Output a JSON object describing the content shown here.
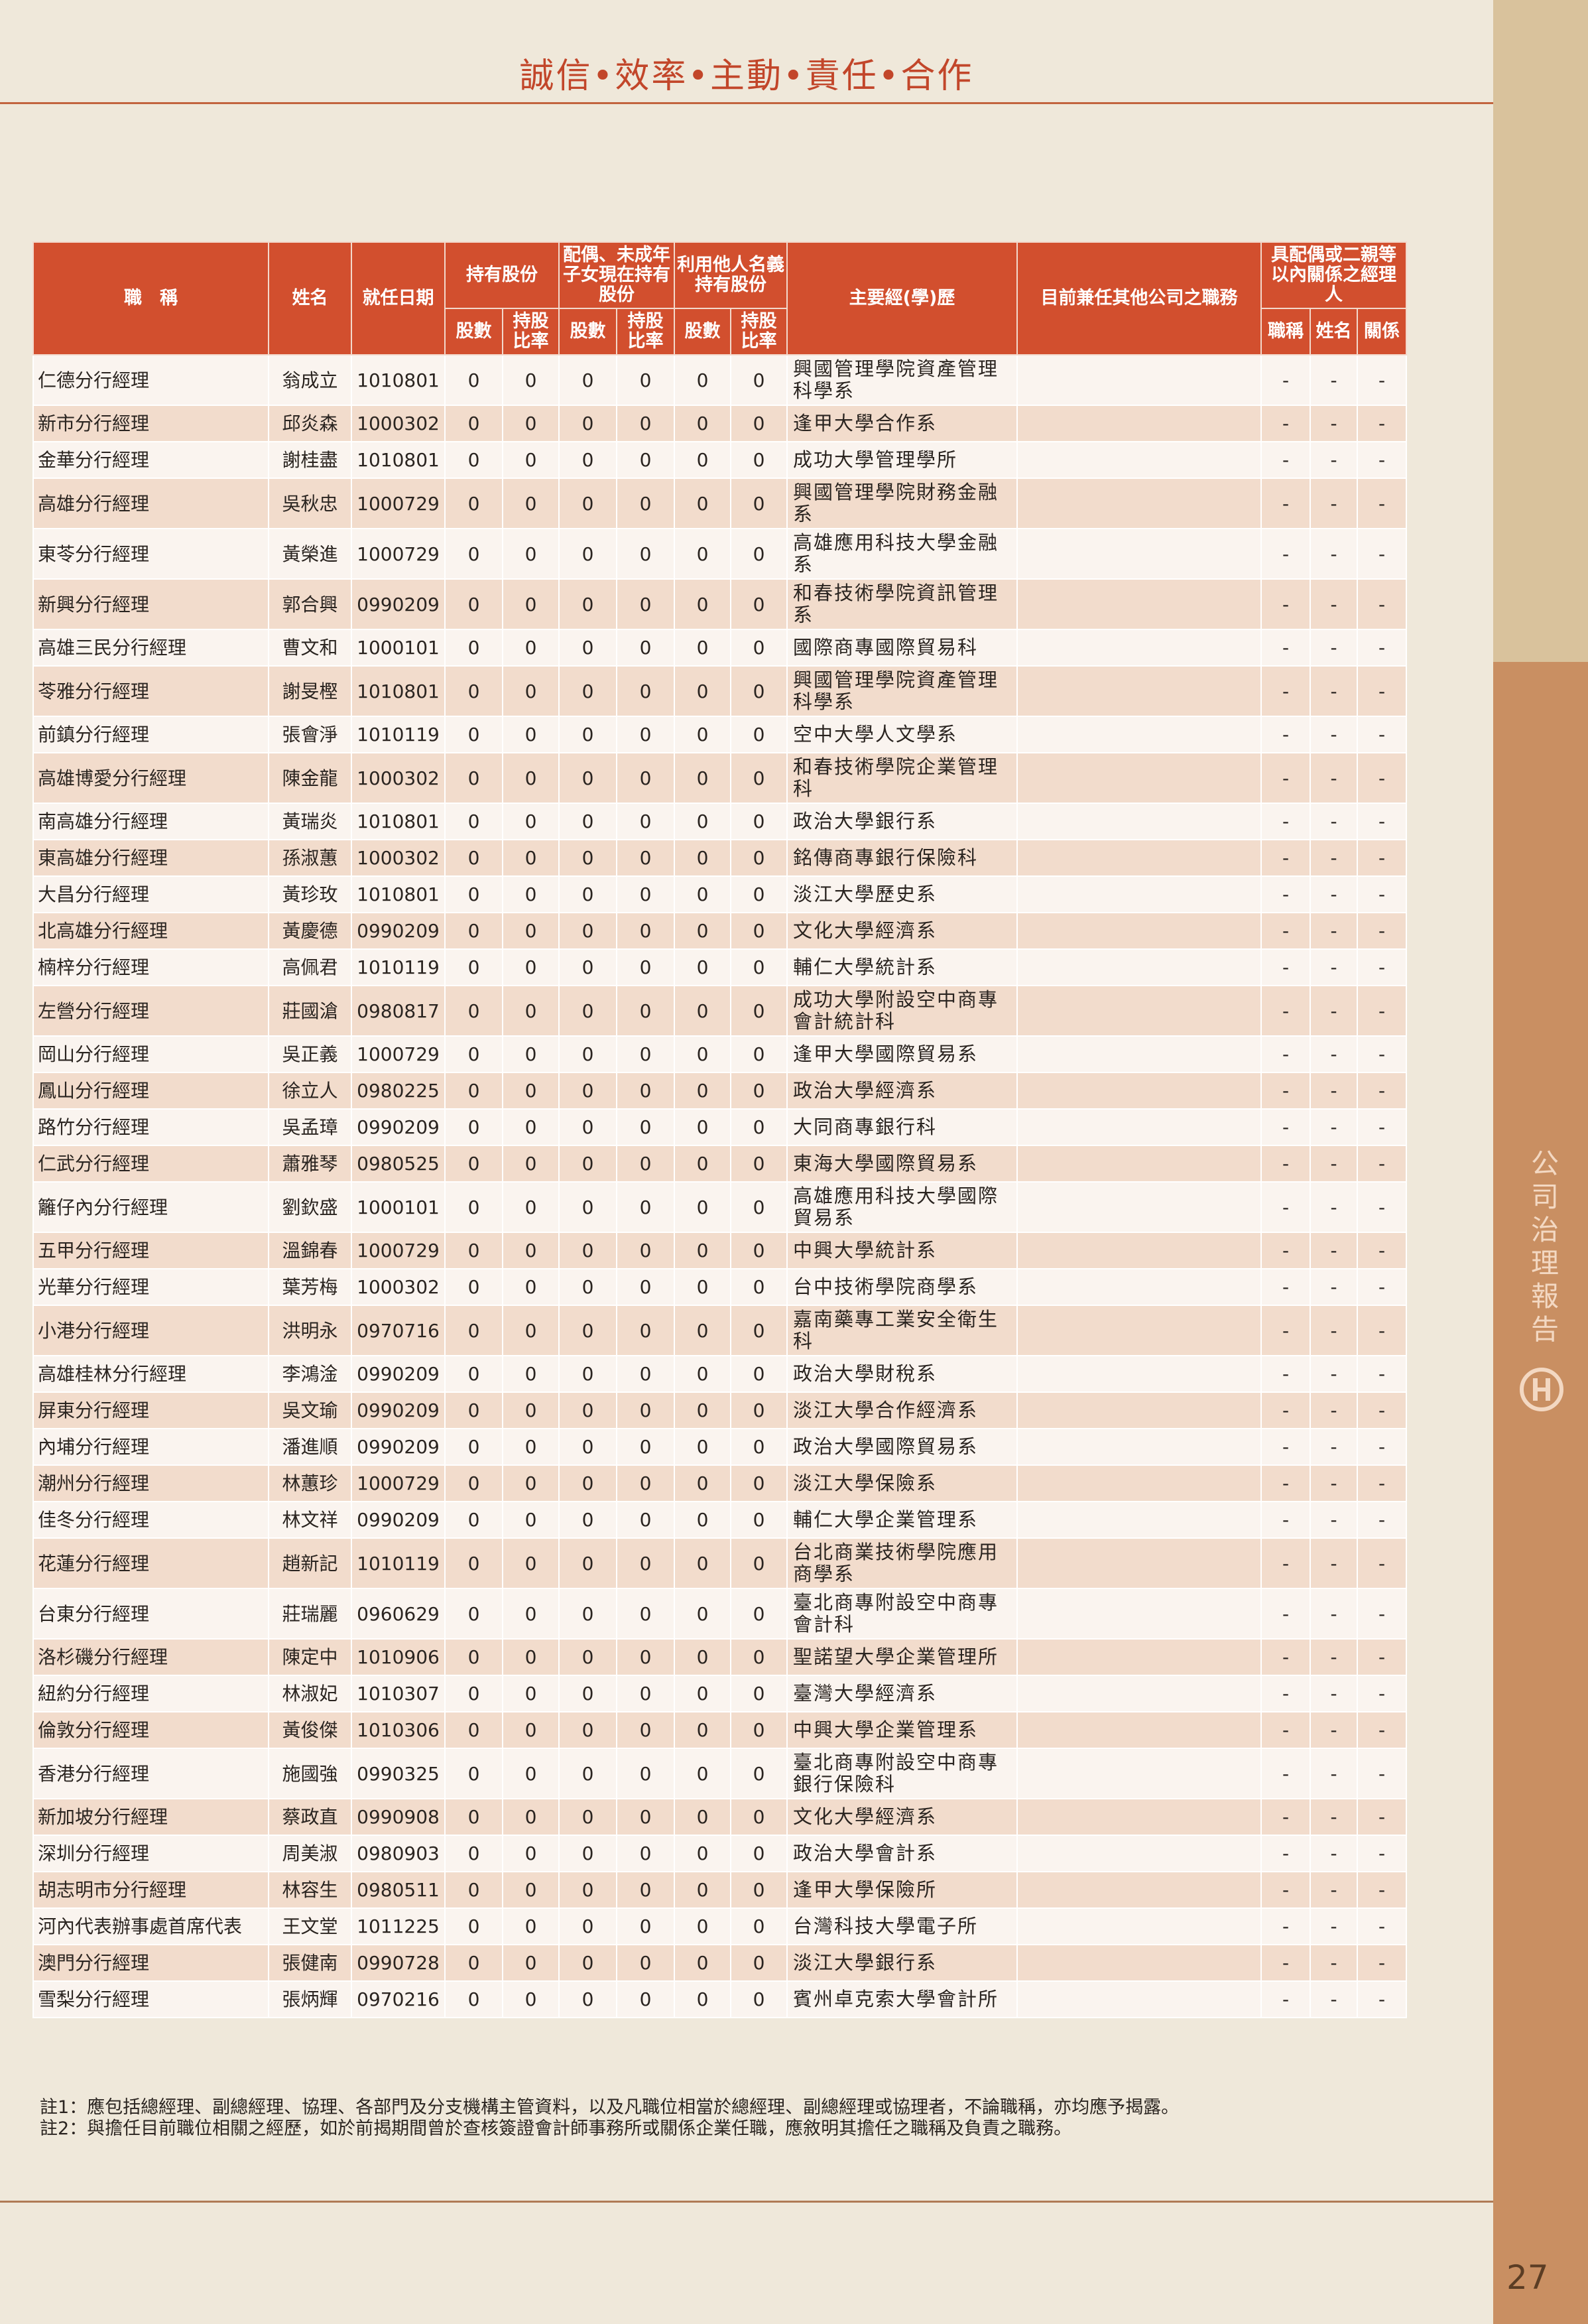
{
  "header": {
    "title": "誠信•效率•主動•責任•合作"
  },
  "table": {
    "head_top": [
      "職　稱",
      "姓名",
      "就任日期",
      "持有股份",
      "配偶、未成年子女現在持有股份",
      "利用他人名義持有股份",
      "主要經(學)歷",
      "目前兼任其他公司之職務",
      "具配偶或二親等以內關係之經理人"
    ],
    "head_sub": [
      "股數",
      "持股比率",
      "股數",
      "持股比率",
      "股數",
      "持股比率",
      "職稱",
      "姓名",
      "關係"
    ],
    "rows": [
      [
        "仁德分行經理",
        "翁成立",
        "1010801",
        0,
        0,
        0,
        0,
        0,
        0,
        "興國管理學院資產管理科學系",
        "-",
        "-",
        "-"
      ],
      [
        "新市分行經理",
        "邱炎森",
        "1000302",
        0,
        0,
        0,
        0,
        0,
        0,
        "逢甲大學合作系",
        "-",
        "-",
        "-"
      ],
      [
        "金華分行經理",
        "謝桂盡",
        "1010801",
        0,
        0,
        0,
        0,
        0,
        0,
        "成功大學管理學所",
        "-",
        "-",
        "-"
      ],
      [
        "高雄分行經理",
        "吳秋忠",
        "1000729",
        0,
        0,
        0,
        0,
        0,
        0,
        "興國管理學院財務金融系",
        "-",
        "-",
        "-"
      ],
      [
        "東苓分行經理",
        "黃榮進",
        "1000729",
        0,
        0,
        0,
        0,
        0,
        0,
        "高雄應用科技大學金融系",
        "-",
        "-",
        "-"
      ],
      [
        "新興分行經理",
        "郭合興",
        "0990209",
        0,
        0,
        0,
        0,
        0,
        0,
        "和春技術學院資訊管理系",
        "-",
        "-",
        "-"
      ],
      [
        "高雄三民分行經理",
        "曹文和",
        "1000101",
        0,
        0,
        0,
        0,
        0,
        0,
        "國際商專國際貿易科",
        "-",
        "-",
        "-"
      ],
      [
        "苓雅分行經理",
        "謝旻樫",
        "1010801",
        0,
        0,
        0,
        0,
        0,
        0,
        "興國管理學院資產管理科學系",
        "-",
        "-",
        "-"
      ],
      [
        "前鎮分行經理",
        "張會淨",
        "1010119",
        0,
        0,
        0,
        0,
        0,
        0,
        "空中大學人文學系",
        "-",
        "-",
        "-"
      ],
      [
        "高雄博愛分行經理",
        "陳金龍",
        "1000302",
        0,
        0,
        0,
        0,
        0,
        0,
        "和春技術學院企業管理科",
        "-",
        "-",
        "-"
      ],
      [
        "南高雄分行經理",
        "黃瑞炎",
        "1010801",
        0,
        0,
        0,
        0,
        0,
        0,
        "政治大學銀行系",
        "-",
        "-",
        "-"
      ],
      [
        "東高雄分行經理",
        "孫淑蕙",
        "1000302",
        0,
        0,
        0,
        0,
        0,
        0,
        "銘傳商專銀行保險科",
        "-",
        "-",
        "-"
      ],
      [
        "大昌分行經理",
        "黃珍玫",
        "1010801",
        0,
        0,
        0,
        0,
        0,
        0,
        "淡江大學歷史系",
        "-",
        "-",
        "-"
      ],
      [
        "北高雄分行經理",
        "黃慶德",
        "0990209",
        0,
        0,
        0,
        0,
        0,
        0,
        "文化大學經濟系",
        "-",
        "-",
        "-"
      ],
      [
        "楠梓分行經理",
        "高佩君",
        "1010119",
        0,
        0,
        0,
        0,
        0,
        0,
        "輔仁大學統計系",
        "-",
        "-",
        "-"
      ],
      [
        "左營分行經理",
        "莊國滄",
        "0980817",
        0,
        0,
        0,
        0,
        0,
        0,
        "成功大學附設空中商專會計統計科",
        "-",
        "-",
        "-"
      ],
      [
        "岡山分行經理",
        "吳正義",
        "1000729",
        0,
        0,
        0,
        0,
        0,
        0,
        "逢甲大學國際貿易系",
        "-",
        "-",
        "-"
      ],
      [
        "鳳山分行經理",
        "徐立人",
        "0980225",
        0,
        0,
        0,
        0,
        0,
        0,
        "政治大學經濟系",
        "-",
        "-",
        "-"
      ],
      [
        "路竹分行經理",
        "吳孟璋",
        "0990209",
        0,
        0,
        0,
        0,
        0,
        0,
        "大同商專銀行科",
        "-",
        "-",
        "-"
      ],
      [
        "仁武分行經理",
        "蕭雅琴",
        "0980525",
        0,
        0,
        0,
        0,
        0,
        0,
        "東海大學國際貿易系",
        "-",
        "-",
        "-"
      ],
      [
        "籬仔內分行經理",
        "劉欽盛",
        "1000101",
        0,
        0,
        0,
        0,
        0,
        0,
        "高雄應用科技大學國際貿易系",
        "-",
        "-",
        "-"
      ],
      [
        "五甲分行經理",
        "溫錦春",
        "1000729",
        0,
        0,
        0,
        0,
        0,
        0,
        "中興大學統計系",
        "-",
        "-",
        "-"
      ],
      [
        "光華分行經理",
        "葉芳梅",
        "1000302",
        0,
        0,
        0,
        0,
        0,
        0,
        "台中技術學院商學系",
        "-",
        "-",
        "-"
      ],
      [
        "小港分行經理",
        "洪明永",
        "0970716",
        0,
        0,
        0,
        0,
        0,
        0,
        "嘉南藥專工業安全衛生科",
        "-",
        "-",
        "-"
      ],
      [
        "高雄桂林分行經理",
        "李鴻淦",
        "0990209",
        0,
        0,
        0,
        0,
        0,
        0,
        "政治大學財稅系",
        "-",
        "-",
        "-"
      ],
      [
        "屏東分行經理",
        "吳文瑜",
        "0990209",
        0,
        0,
        0,
        0,
        0,
        0,
        "淡江大學合作經濟系",
        "-",
        "-",
        "-"
      ],
      [
        "內埔分行經理",
        "潘進順",
        "0990209",
        0,
        0,
        0,
        0,
        0,
        0,
        "政治大學國際貿易系",
        "-",
        "-",
        "-"
      ],
      [
        "潮州分行經理",
        "林蕙珍",
        "1000729",
        0,
        0,
        0,
        0,
        0,
        0,
        "淡江大學保險系",
        "-",
        "-",
        "-"
      ],
      [
        "佳冬分行經理",
        "林文祥",
        "0990209",
        0,
        0,
        0,
        0,
        0,
        0,
        "輔仁大學企業管理系",
        "-",
        "-",
        "-"
      ],
      [
        "花蓮分行經理",
        "趙新記",
        "1010119",
        0,
        0,
        0,
        0,
        0,
        0,
        "台北商業技術學院應用商學系",
        "-",
        "-",
        "-"
      ],
      [
        "台東分行經理",
        "莊瑞麗",
        "0960629",
        0,
        0,
        0,
        0,
        0,
        0,
        "臺北商專附設空中商專會計科",
        "-",
        "-",
        "-"
      ],
      [
        "洛杉磯分行經理",
        "陳定中",
        "1010906",
        0,
        0,
        0,
        0,
        0,
        0,
        "聖諾望大學企業管理所",
        "-",
        "-",
        "-"
      ],
      [
        "紐約分行經理",
        "林淑妃",
        "1010307",
        0,
        0,
        0,
        0,
        0,
        0,
        "臺灣大學經濟系",
        "-",
        "-",
        "-"
      ],
      [
        "倫敦分行經理",
        "黃俊傑",
        "1010306",
        0,
        0,
        0,
        0,
        0,
        0,
        "中興大學企業管理系",
        "-",
        "-",
        "-"
      ],
      [
        "香港分行經理",
        "施國強",
        "0990325",
        0,
        0,
        0,
        0,
        0,
        0,
        "臺北商專附設空中商專銀行保險科",
        "-",
        "-",
        "-"
      ],
      [
        "新加坡分行經理",
        "蔡政直",
        "0990908",
        0,
        0,
        0,
        0,
        0,
        0,
        "文化大學經濟系",
        "-",
        "-",
        "-"
      ],
      [
        "深圳分行經理",
        "周美淑",
        "0980903",
        0,
        0,
        0,
        0,
        0,
        0,
        "政治大學會計系",
        "-",
        "-",
        "-"
      ],
      [
        "胡志明市分行經理",
        "林容生",
        "0980511",
        0,
        0,
        0,
        0,
        0,
        0,
        "逢甲大學保險所",
        "-",
        "-",
        "-"
      ],
      [
        "河內代表辦事處首席代表",
        "王文堂",
        "1011225",
        0,
        0,
        0,
        0,
        0,
        0,
        "台灣科技大學電子所",
        "-",
        "-",
        "-"
      ],
      [
        "澳門分行經理",
        "張健南",
        "0990728",
        0,
        0,
        0,
        0,
        0,
        0,
        "淡江大學銀行系",
        "-",
        "-",
        "-"
      ],
      [
        "雪梨分行經理",
        "張炳輝",
        "0970216",
        0,
        0,
        0,
        0,
        0,
        0,
        "賓州卓克索大學會計所",
        "-",
        "-",
        "-"
      ]
    ]
  },
  "notes": [
    "註1：應包括總經理、副總經理、協理、各部門及分支機構主管資料，以及凡職位相當於總經理、副總經理或協理者，不論職稱，亦均應予揭露。",
    "註2：與擔任目前職位相關之經歷，如於前揭期間曾於查核簽證會計師事務所或關係企業任職，應敘明其擔任之職稱及負責之職務。"
  ],
  "side_title": "公司治理報告",
  "page_number": "27"
}
